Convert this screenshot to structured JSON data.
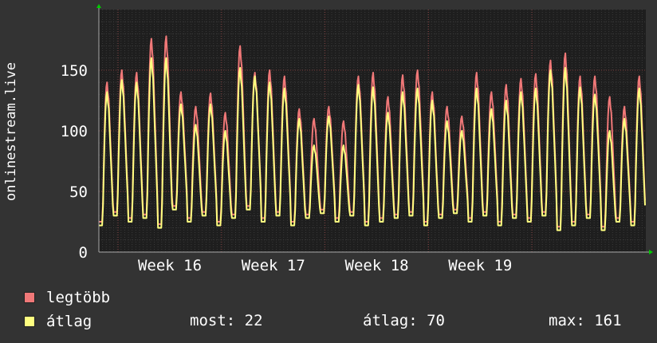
{
  "chart_data": {
    "type": "line",
    "ylabel": "onlinestream.live",
    "ylim": [
      0,
      200
    ],
    "y_ticks": [
      "0",
      "50",
      "100",
      "150"
    ],
    "x_ticks": [
      "Week 16",
      "Week 17",
      "Week 18",
      "Week 19"
    ],
    "grid": true,
    "colors": {
      "background": "#333333",
      "plot": "#1e1e1e",
      "grid": "#555555",
      "text": "#ffffff",
      "axis_arrow": "#00cc00"
    },
    "series": [
      {
        "name": "legtöbb",
        "color": "#f07878",
        "daily_peaks": [
          140,
          150,
          148,
          176,
          178,
          132,
          120,
          131,
          115,
          170,
          148,
          150,
          145,
          118,
          110,
          120,
          108,
          145,
          148,
          128,
          146,
          150,
          132,
          120,
          112,
          148,
          132,
          138,
          143,
          147,
          158,
          164,
          145,
          145,
          128,
          120,
          145
        ]
      },
      {
        "name": "átlag",
        "color": "#ffff80",
        "daily_peaks": [
          132,
          142,
          140,
          160,
          160,
          122,
          105,
          122,
          100,
          152,
          145,
          140,
          135,
          110,
          88,
          112,
          88,
          138,
          136,
          115,
          132,
          135,
          125,
          108,
          100,
          135,
          118,
          125,
          132,
          135,
          150,
          152,
          136,
          130,
          100,
          110,
          135
        ]
      }
    ]
  },
  "legend": [
    {
      "label": "legtöbb",
      "color": "#f07878"
    },
    {
      "label": "átlag",
      "color": "#ffff80"
    }
  ],
  "stats": {
    "most": "most: 22",
    "atlag": "átlag: 70",
    "max": "max: 161"
  }
}
